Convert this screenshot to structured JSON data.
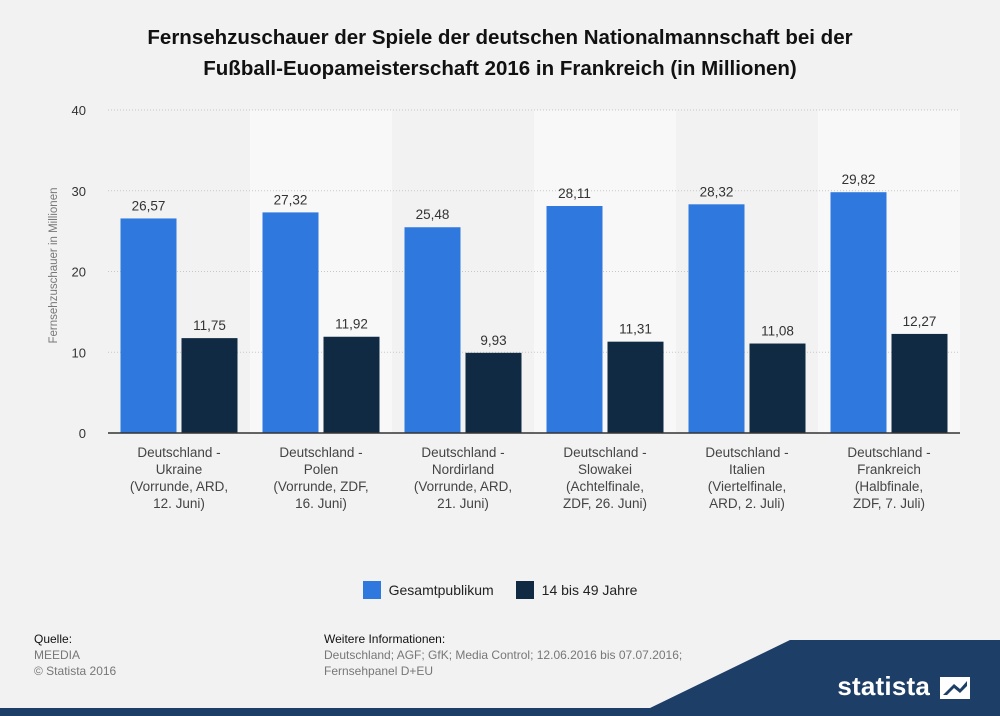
{
  "chart_data": {
    "type": "bar",
    "title_lines": [
      "Fernsehzuschauer der Spiele der deutschen Nationalmannschaft bei der",
      "Fußball-Euopameisterschaft 2016 in Frankreich (in Millionen)"
    ],
    "ylabel": "Fernsehzuschauer in Millionen",
    "xlabel": "",
    "ylim": [
      0,
      40
    ],
    "yticks": [
      0,
      10,
      20,
      30,
      40
    ],
    "grid": true,
    "legend_position": "bottom",
    "categories": [
      [
        "Deutschland -",
        "Ukraine",
        "(Vorrunde, ARD,",
        "12. Juni)"
      ],
      [
        "Deutschland -",
        "Polen",
        "(Vorrunde, ZDF,",
        "16. Juni)"
      ],
      [
        "Deutschland -",
        "Nordirland",
        "(Vorrunde, ARD,",
        "21. Juni)"
      ],
      [
        "Deutschland -",
        "Slowakei",
        "(Achtelfinale,",
        "ZDF, 26. Juni)"
      ],
      [
        "Deutschland -",
        "Italien",
        "(Viertelfinale,",
        "ARD, 2. Juli)"
      ],
      [
        "Deutschland -",
        "Frankreich",
        "(Halbfinale,",
        "ZDF, 7. Juli)"
      ]
    ],
    "series": [
      {
        "name": "Gesamtpublikum",
        "color": "#2f78de",
        "values": [
          26.57,
          27.32,
          25.48,
          28.11,
          28.32,
          29.82
        ],
        "labels": [
          "26,57",
          "27,32",
          "25,48",
          "28,11",
          "28,32",
          "29,82"
        ]
      },
      {
        "name": "14 bis 49 Jahre",
        "color": "#0f2a42",
        "values": [
          11.75,
          11.92,
          9.93,
          11.31,
          11.08,
          12.27
        ],
        "labels": [
          "11,75",
          "11,92",
          "9,93",
          "11,31",
          "11,08",
          "12,27"
        ]
      }
    ]
  },
  "source": {
    "heading": "Quelle:",
    "lines": [
      "MEEDIA",
      "© Statista 2016"
    ]
  },
  "info": {
    "heading": "Weitere Informationen:",
    "lines": [
      "Deutschland; AGF; GfK; Media Control; 12.06.2016 bis 07.07.2016;",
      "Fernsehpanel D+EU"
    ]
  },
  "branding": {
    "logo_text": "statista",
    "logo_icon": "statista-logo-icon",
    "accent_color": "#1d3e66"
  }
}
